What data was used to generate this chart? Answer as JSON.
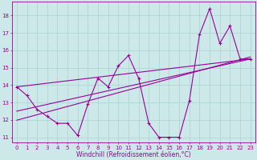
{
  "xlabel": "Windchill (Refroidissement éolien,°C)",
  "bg_color": "#cce8e8",
  "line_color": "#990099",
  "grid_color": "#b0d4d4",
  "x_data": [
    0,
    1,
    2,
    3,
    4,
    5,
    6,
    7,
    8,
    9,
    10,
    11,
    12,
    13,
    14,
    15,
    16,
    17,
    18,
    19,
    20,
    21,
    22,
    23
  ],
  "y_data": [
    13.9,
    13.4,
    12.6,
    12.2,
    11.8,
    11.8,
    11.1,
    12.9,
    14.4,
    13.9,
    15.1,
    15.7,
    14.4,
    11.8,
    11.0,
    11.0,
    11.0,
    13.1,
    16.9,
    18.4,
    16.4,
    17.4,
    15.5,
    15.5
  ],
  "line1": [
    [
      0,
      23
    ],
    [
      13.9,
      15.5
    ]
  ],
  "line2": [
    [
      0,
      23
    ],
    [
      12.5,
      15.5
    ]
  ],
  "xlim": [
    -0.5,
    23.5
  ],
  "ylim": [
    10.7,
    18.8
  ],
  "yticks": [
    11,
    12,
    13,
    14,
    15,
    16,
    17,
    18
  ],
  "xticks": [
    0,
    1,
    2,
    3,
    4,
    5,
    6,
    7,
    8,
    9,
    10,
    11,
    12,
    13,
    14,
    15,
    16,
    17,
    18,
    19,
    20,
    21,
    22,
    23
  ],
  "tick_fontsize": 5.0,
  "xlabel_fontsize": 5.5,
  "linewidth": 0.8,
  "markersize": 3.5
}
